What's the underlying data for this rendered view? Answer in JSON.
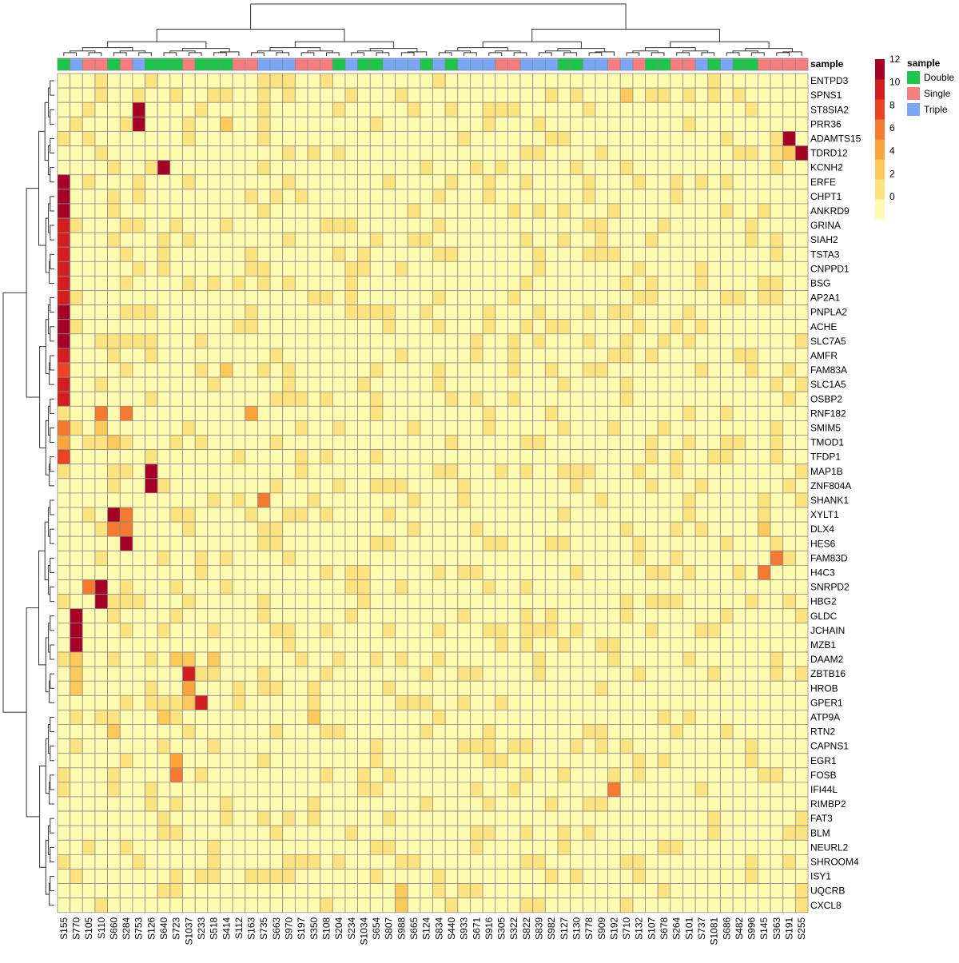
{
  "chart_data": {
    "type": "heatmap",
    "title": "",
    "xlabel": "",
    "ylabel": "",
    "columns": [
      "S155",
      "S770",
      "S105",
      "S110",
      "S660",
      "S284",
      "S753",
      "S126",
      "S640",
      "S723",
      "S1037",
      "S233",
      "S518",
      "S414",
      "S112",
      "S163",
      "S735",
      "S663",
      "S970",
      "S197",
      "S350",
      "S108",
      "S204",
      "S234",
      "S1034",
      "S654",
      "S807",
      "S988",
      "S665",
      "S124",
      "S834",
      "S440",
      "S933",
      "S671",
      "S916",
      "S305",
      "S322",
      "S822",
      "S839",
      "S982",
      "S127",
      "S130",
      "S778",
      "S909",
      "S192",
      "S710",
      "S132",
      "S107",
      "S678",
      "S264",
      "S101",
      "S737",
      "S1081",
      "S686",
      "S482",
      "S996",
      "S145",
      "S363",
      "S191",
      "S255"
    ],
    "rows": [
      "ENTPD3",
      "SPNS1",
      "ST8SIA2",
      "PRR36",
      "ADAMTS15",
      "TDRD12",
      "KCNH2",
      "ERFE",
      "CHPT1",
      "ANKRD9",
      "GRINA",
      "SIAH2",
      "TSTA3",
      "CNPPD1",
      "BSG",
      "AP2A1",
      "PNPLA2",
      "ACHE",
      "SLC7A5",
      "AMFR",
      "FAM83A",
      "SLC1A5",
      "OSBP2",
      "RNF182",
      "SMIM5",
      "TMOD1",
      "TFDP1",
      "MAP1B",
      "ZNF804A",
      "SHANK1",
      "XYLT1",
      "DLX4",
      "HES6",
      "FAM83D",
      "H4C3",
      "SNRPD2",
      "HBG2",
      "GLDC",
      "JCHAIN",
      "MZB1",
      "DAAM2",
      "ZBTB16",
      "HROB",
      "GPER1",
      "ATP9A",
      "RTN2",
      "CAPNS1",
      "EGR1",
      "FOSB",
      "IFI44L",
      "RIMBP2",
      "FAT3",
      "BLM",
      "NEURL2",
      "SHROOM4",
      "ISY1",
      "UQCRB",
      "CXCL8"
    ],
    "annotation": {
      "title": "sample",
      "values": [
        "Double",
        "Triple",
        "Single",
        "Single",
        "Double",
        "Single",
        "Triple",
        "Double",
        "Double",
        "Double",
        "Single",
        "Double",
        "Double",
        "Double",
        "Single",
        "Single",
        "Triple",
        "Triple",
        "Triple",
        "Single",
        "Single",
        "Single",
        "Double",
        "Triple",
        "Double",
        "Double",
        "Triple",
        "Triple",
        "Triple",
        "Double",
        "Triple",
        "Double",
        "Triple",
        "Triple",
        "Triple",
        "Single",
        "Single",
        "Triple",
        "Triple",
        "Triple",
        "Double",
        "Double",
        "Triple",
        "Triple",
        "Single",
        "Triple",
        "Single",
        "Double",
        "Double",
        "Single",
        "Single",
        "Triple",
        "Double",
        "Triple",
        "Double",
        "Double",
        "Single",
        "Single",
        "Single",
        "Single"
      ]
    },
    "legend": {
      "title": "sample",
      "items": [
        {
          "label": "Double",
          "color": "#1ec44b"
        },
        {
          "label": "Single",
          "color": "#f47d7d"
        },
        {
          "label": "Triple",
          "color": "#7aa6f5"
        }
      ]
    },
    "colorbar": {
      "ticks": [
        0,
        2,
        4,
        6,
        8,
        10,
        12
      ],
      "range": [
        0,
        12
      ],
      "stops": [
        "#fffbb1",
        "#fde280",
        "#fcc95a",
        "#fba43c",
        "#f57a31",
        "#ec4326",
        "#d21e20",
        "#a50026"
      ]
    },
    "highlights": [
      {
        "row": "ENTPD3",
        "cells": [
          [
            "S735",
            2
          ],
          [
            "S663",
            2
          ],
          [
            "S970",
            2
          ]
        ]
      },
      {
        "row": "SPNS1",
        "cells": [
          [
            "S110",
            2
          ],
          [
            "S753",
            2
          ],
          [
            "S710",
            4
          ]
        ]
      },
      {
        "row": "ST8SIA2",
        "cells": [
          [
            "S753",
            12
          ]
        ]
      },
      {
        "row": "PRR36",
        "cells": [
          [
            "S753",
            12
          ],
          [
            "S414",
            4
          ]
        ]
      },
      {
        "row": "ADAMTS15",
        "cells": [
          [
            "S191",
            12
          ],
          [
            "S363",
            2
          ]
        ]
      },
      {
        "row": "TDRD12",
        "cells": [
          [
            "S255",
            12
          ],
          [
            "S191",
            4
          ]
        ]
      },
      {
        "row": "KCNH2",
        "cells": [
          [
            "S640",
            12
          ]
        ]
      },
      {
        "row": "ERFE",
        "cells": [
          [
            "S155",
            12
          ]
        ]
      },
      {
        "row": "CHPT1",
        "cells": [
          [
            "S155",
            12
          ]
        ]
      },
      {
        "row": "ANKRD9",
        "cells": [
          [
            "S155",
            12
          ]
        ]
      },
      {
        "row": "GRINA",
        "cells": [
          [
            "S155",
            11
          ]
        ]
      },
      {
        "row": "SIAH2",
        "cells": [
          [
            "S155",
            11
          ]
        ]
      },
      {
        "row": "TSTA3",
        "cells": [
          [
            "S155",
            11
          ]
        ]
      },
      {
        "row": "CNPPD1",
        "cells": [
          [
            "S155",
            11
          ]
        ]
      },
      {
        "row": "BSG",
        "cells": [
          [
            "S155",
            10
          ]
        ]
      },
      {
        "row": "AP2A1",
        "cells": [
          [
            "S155",
            10
          ]
        ]
      },
      {
        "row": "PNPLA2",
        "cells": [
          [
            "S155",
            12
          ]
        ]
      },
      {
        "row": "ACHE",
        "cells": [
          [
            "S155",
            12
          ]
        ]
      },
      {
        "row": "SLC7A5",
        "cells": [
          [
            "S155",
            12
          ]
        ]
      },
      {
        "row": "AMFR",
        "cells": [
          [
            "S155",
            11
          ]
        ]
      },
      {
        "row": "FAM83A",
        "cells": [
          [
            "S155",
            8
          ],
          [
            "S414",
            4
          ]
        ]
      },
      {
        "row": "SLC1A5",
        "cells": [
          [
            "S155",
            10
          ]
        ]
      },
      {
        "row": "OSBP2",
        "cells": [
          [
            "S155",
            10
          ]
        ]
      },
      {
        "row": "RNF182",
        "cells": [
          [
            "S110",
            6
          ],
          [
            "S284",
            6
          ],
          [
            "S163",
            5
          ]
        ]
      },
      {
        "row": "SMIM5",
        "cells": [
          [
            "S155",
            6
          ],
          [
            "S110",
            4
          ]
        ]
      },
      {
        "row": "TMOD1",
        "cells": [
          [
            "S155",
            5
          ],
          [
            "S660",
            4
          ]
        ]
      },
      {
        "row": "TFDP1",
        "cells": [
          [
            "S155",
            9
          ]
        ]
      },
      {
        "row": "MAP1B",
        "cells": [
          [
            "S126",
            12
          ]
        ]
      },
      {
        "row": "ZNF804A",
        "cells": [
          [
            "S126",
            12
          ]
        ]
      },
      {
        "row": "SHANK1",
        "cells": [
          [
            "S735",
            7
          ]
        ]
      },
      {
        "row": "XYLT1",
        "cells": [
          [
            "S660",
            12
          ],
          [
            "S284",
            6
          ]
        ]
      },
      {
        "row": "DLX4",
        "cells": [
          [
            "S660",
            6
          ],
          [
            "S284",
            6
          ],
          [
            "S145",
            4
          ]
        ]
      },
      {
        "row": "HES6",
        "cells": [
          [
            "S284",
            12
          ]
        ]
      },
      {
        "row": "FAM83D",
        "cells": [
          [
            "S363",
            7
          ]
        ]
      },
      {
        "row": "H4C3",
        "cells": [
          [
            "S145",
            6
          ]
        ]
      },
      {
        "row": "SNRPD2",
        "cells": [
          [
            "S105",
            6
          ],
          [
            "S110",
            12
          ]
        ]
      },
      {
        "row": "HBG2",
        "cells": [
          [
            "S110",
            12
          ]
        ]
      },
      {
        "row": "GLDC",
        "cells": [
          [
            "S770",
            12
          ]
        ]
      },
      {
        "row": "JCHAIN",
        "cells": [
          [
            "S770",
            12
          ]
        ]
      },
      {
        "row": "MZB1",
        "cells": [
          [
            "S770",
            12
          ]
        ]
      },
      {
        "row": "DAAM2",
        "cells": [
          [
            "S770",
            4
          ],
          [
            "S723",
            4
          ],
          [
            "S1037",
            4
          ],
          [
            "S518",
            4
          ]
        ]
      },
      {
        "row": "ZBTB16",
        "cells": [
          [
            "S770",
            4
          ],
          [
            "S1037",
            10
          ]
        ]
      },
      {
        "row": "HROB",
        "cells": [
          [
            "S770",
            4
          ],
          [
            "S1037",
            5
          ]
        ]
      },
      {
        "row": "GPER1",
        "cells": [
          [
            "S233",
            10
          ],
          [
            "S1037",
            4
          ]
        ]
      },
      {
        "row": "ATP9A",
        "cells": [
          [
            "S640",
            4
          ],
          [
            "S350",
            4
          ]
        ]
      },
      {
        "row": "RTN2",
        "cells": [
          [
            "S660",
            4
          ]
        ]
      },
      {
        "row": "EGR1",
        "cells": [
          [
            "S723",
            5
          ]
        ]
      },
      {
        "row": "FOSB",
        "cells": [
          [
            "S723",
            6
          ]
        ]
      },
      {
        "row": "IFI44L",
        "cells": [
          [
            "S192",
            7
          ]
        ]
      },
      {
        "row": "UQCRB",
        "cells": [
          [
            "S988",
            4
          ]
        ]
      },
      {
        "row": "CXCL8",
        "cells": [
          [
            "S988",
            3
          ]
        ]
      }
    ]
  }
}
